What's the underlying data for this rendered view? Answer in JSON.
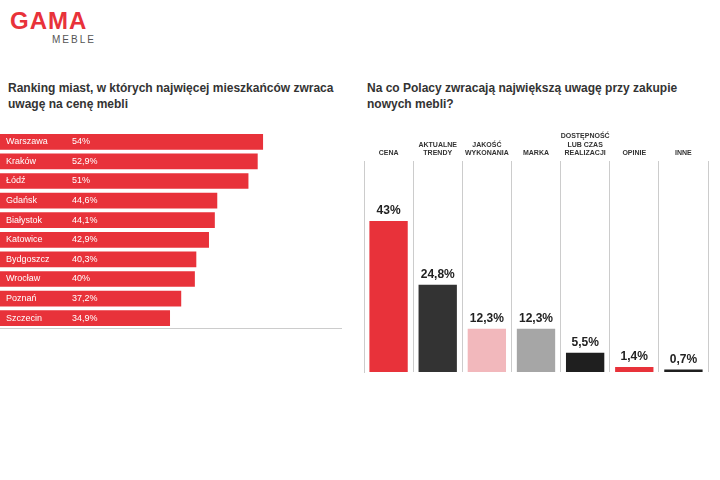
{
  "logo": {
    "name": "GAMA",
    "sub": "MEBLE"
  },
  "chart_data": [
    {
      "type": "bar",
      "orientation": "horizontal",
      "title": "Ranking miast, w których najwięcej mieszkańców zwraca uwagę na cenę mebli",
      "categories": [
        "Warszawa",
        "Kraków",
        "Łódź",
        "Gdańsk",
        "Białystok",
        "Katowice",
        "Bydgoszcz",
        "Wrocław",
        "Poznań",
        "Szczecin"
      ],
      "values": [
        54,
        52.9,
        51,
        44.6,
        44.1,
        42.9,
        40.3,
        40,
        37.2,
        34.9
      ],
      "value_labels": [
        "54%",
        "52,9%",
        "51%",
        "44,6%",
        "44,1%",
        "42,9%",
        "40,3%",
        "40%",
        "37,2%",
        "34,9%"
      ],
      "color": "#e8323a",
      "xlim": [
        0,
        70
      ],
      "grid": false,
      "data_labels": true,
      "tick_labels": false
    },
    {
      "type": "bar",
      "title": "Na co Polacy zwracają największą uwagę przy zakupie nowych mebli?",
      "categories": [
        "CENA",
        "AKTUALNE TRENDY",
        "JAKOŚĆ WYKONANIA",
        "MARKA",
        "DOSTĘPNOŚĆ LUB CZAS REALIZACJI",
        "OPINIE",
        "INNE"
      ],
      "values": [
        43,
        24.8,
        12.3,
        12.3,
        5.5,
        1.4,
        0.7
      ],
      "value_labels": [
        "43%",
        "24,8%",
        "12,3%",
        "12,3%",
        "5,5%",
        "1,4%",
        "0,7%"
      ],
      "colors": [
        "#e8323a",
        "#333333",
        "#f2b8bc",
        "#a6a6a6",
        "#1f1f1f",
        "#e8323a",
        "#1f1f1f"
      ],
      "ylim": [
        0,
        60
      ],
      "grid": true,
      "data_labels": true,
      "tick_labels": "x"
    }
  ]
}
